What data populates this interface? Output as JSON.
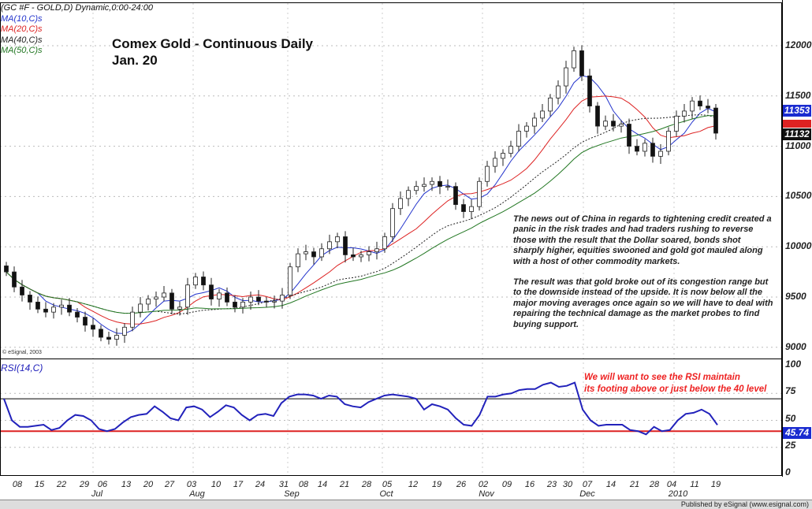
{
  "header": {
    "symbol_line": "(GC #F - GOLD,D) Dynamic,0:00-24:00",
    "copyright": "© eSignal, 2003"
  },
  "legend": [
    {
      "label": "MA(10,C)s",
      "color": "#2233cc"
    },
    {
      "label": "MA(20,C)s",
      "color": "#dd2222"
    },
    {
      "label": "MA(40,C)s",
      "color": "#222222"
    },
    {
      "label": "MA(50,C)s",
      "color": "#227722"
    }
  ],
  "title": {
    "line1": "Comex Gold - Continuous Daily",
    "line2": "Jan. 20"
  },
  "note": {
    "p1": "The news out of China in regards to tightening credit created a panic in the risk trades and had traders rushing to reverse those with the result that the Dollar soared, bonds shot sharply higher, equities swooned and gold got mauled along with a host of other commodity markets.",
    "p2": "The result was that gold broke out of its congestion range but to the downside instead of the upside. It is now below all the major moving averages once again so we will have to deal with repairing the technical damage as the market probes to find buying support."
  },
  "rsi_note": {
    "line1": "We will want to see the RSI maintain",
    "line2": "its footing above or just below the 40 level"
  },
  "badges": {
    "price_last": "11353",
    "price_ma": "11132",
    "rsi_last": "45.74"
  },
  "footer": {
    "published": "Published by eSignal (www.esignal.com)"
  },
  "chart_data": [
    {
      "type": "candlestick",
      "title": "Comex Gold - Continuous Daily",
      "ylim": [
        8900,
        12300
      ],
      "y_ticks": [
        "12000",
        "11500",
        "11000",
        "10500",
        "10000",
        "9500",
        "9000"
      ],
      "grid": true,
      "moving_averages": [
        10,
        20,
        40,
        50
      ],
      "closes": [
        9750,
        9600,
        9520,
        9450,
        9380,
        9350,
        9400,
        9420,
        9350,
        9300,
        9220,
        9180,
        9100,
        9080,
        9120,
        9200,
        9350,
        9430,
        9480,
        9500,
        9540,
        9380,
        9400,
        9620,
        9700,
        9620,
        9480,
        9540,
        9450,
        9400,
        9450,
        9500,
        9460,
        9450,
        9460,
        9520,
        9800,
        9930,
        9950,
        9900,
        9980,
        10050,
        10100,
        9920,
        9900,
        9920,
        9950,
        9980,
        10100,
        10380,
        10480,
        10560,
        10600,
        10620,
        10650,
        10600,
        10600,
        10420,
        10350,
        10400,
        10650,
        10800,
        10880,
        10930,
        11000,
        11150,
        11200,
        11280,
        11350,
        11480,
        11600,
        11780,
        11950,
        11700,
        11400,
        11200,
        11250,
        11200,
        11220,
        11000,
        10950,
        11030,
        10900,
        10950,
        11150,
        11300,
        11350,
        11450,
        11400,
        11380,
        11130
      ],
      "x_tick_labels": [
        "08",
        "15",
        "22",
        "29",
        "06",
        "13",
        "20",
        "27",
        "03",
        "10",
        "17",
        "24",
        "31",
        "08",
        "14",
        "21",
        "28",
        "05",
        "12",
        "19",
        "26",
        "02",
        "09",
        "16",
        "23",
        "30",
        "07",
        "14",
        "21",
        "28",
        "04",
        "11",
        "19"
      ],
      "month_labels": [
        "Jul",
        "Aug",
        "Sep",
        "Oct",
        "Nov",
        "Dec",
        "2010"
      ]
    },
    {
      "type": "line",
      "title": "RSI(14,C)",
      "ylim": [
        0,
        100
      ],
      "y_ticks": [
        "100",
        "75",
        "50",
        "25",
        "0"
      ],
      "reference_lines": [
        {
          "value": 70,
          "color": "#000000"
        },
        {
          "value": 40,
          "color": "#dd2222"
        }
      ],
      "color": "#2222bb",
      "values": [
        70,
        50,
        44,
        44,
        45,
        46,
        41,
        43,
        50,
        55,
        54,
        50,
        42,
        40,
        42,
        48,
        53,
        55,
        56,
        63,
        58,
        52,
        50,
        62,
        63,
        60,
        53,
        58,
        64,
        62,
        55,
        50,
        55,
        56,
        54,
        66,
        72,
        74,
        74,
        73,
        70,
        73,
        72,
        65,
        63,
        62,
        67,
        70,
        73,
        74,
        73,
        72,
        70,
        60,
        65,
        63,
        60,
        52,
        46,
        45,
        55,
        72,
        72,
        74,
        75,
        78,
        79,
        79,
        83,
        85,
        81,
        82,
        85,
        60,
        50,
        45,
        46,
        46,
        46,
        41,
        40,
        37,
        44,
        40,
        41,
        50,
        56,
        57,
        60,
        56,
        45.74
      ]
    }
  ]
}
